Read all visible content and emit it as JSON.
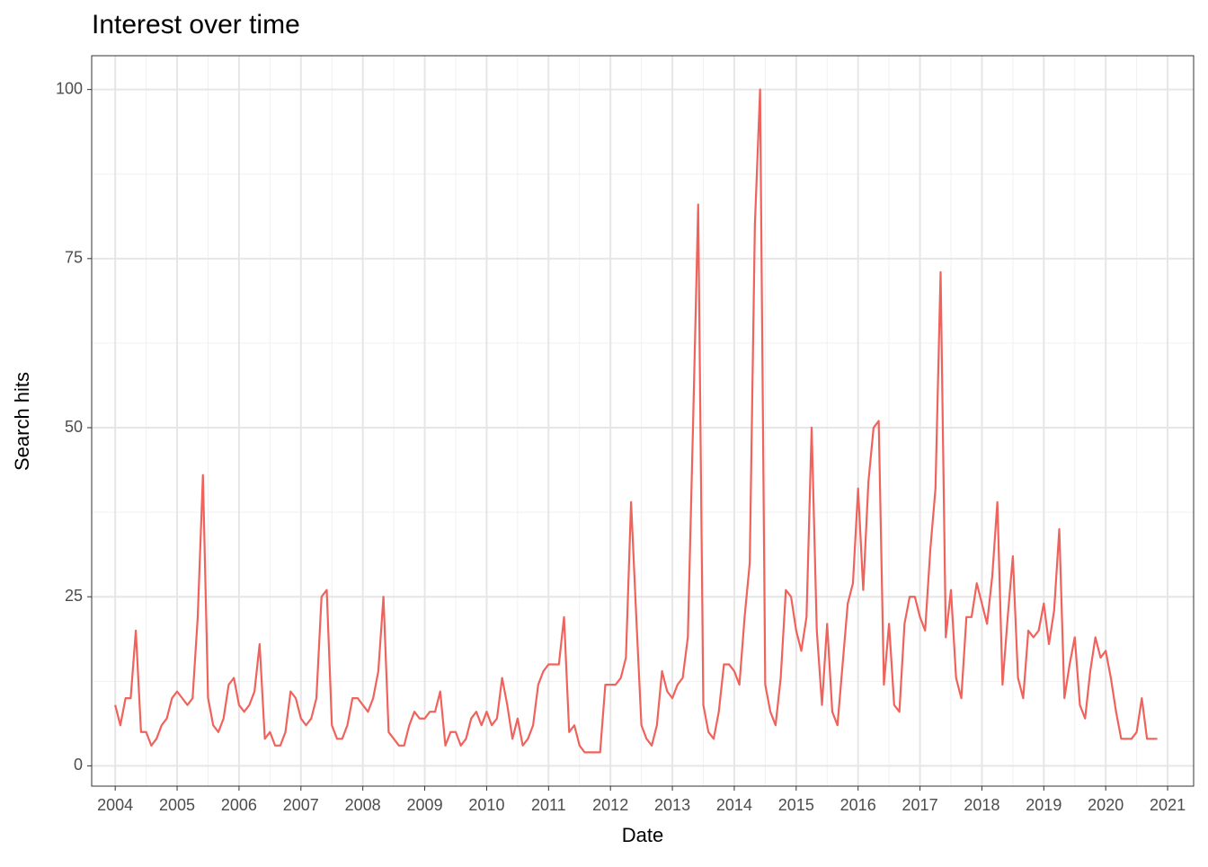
{
  "chart_data": {
    "type": "line",
    "title": "Interest over time",
    "x_label": "Date",
    "y_label": "Search hits",
    "x": [
      2004,
      2004.083,
      2004.167,
      2004.25,
      2004.333,
      2004.417,
      2004.5,
      2004.583,
      2004.667,
      2004.75,
      2004.833,
      2004.917,
      2005,
      2005.083,
      2005.167,
      2005.25,
      2005.333,
      2005.417,
      2005.5,
      2005.583,
      2005.667,
      2005.75,
      2005.833,
      2005.917,
      2006,
      2006.083,
      2006.167,
      2006.25,
      2006.333,
      2006.417,
      2006.5,
      2006.583,
      2006.667,
      2006.75,
      2006.833,
      2006.917,
      2007,
      2007.083,
      2007.167,
      2007.25,
      2007.333,
      2007.417,
      2007.5,
      2007.583,
      2007.667,
      2007.75,
      2007.833,
      2007.917,
      2008,
      2008.083,
      2008.167,
      2008.25,
      2008.333,
      2008.417,
      2008.5,
      2008.583,
      2008.667,
      2008.75,
      2008.833,
      2008.917,
      2009,
      2009.083,
      2009.167,
      2009.25,
      2009.333,
      2009.417,
      2009.5,
      2009.583,
      2009.667,
      2009.75,
      2009.833,
      2009.917,
      2010,
      2010.083,
      2010.167,
      2010.25,
      2010.333,
      2010.417,
      2010.5,
      2010.583,
      2010.667,
      2010.75,
      2010.833,
      2010.917,
      2011,
      2011.083,
      2011.167,
      2011.25,
      2011.333,
      2011.417,
      2011.5,
      2011.583,
      2011.667,
      2011.75,
      2011.833,
      2011.917,
      2012,
      2012.083,
      2012.167,
      2012.25,
      2012.333,
      2012.417,
      2012.5,
      2012.583,
      2012.667,
      2012.75,
      2012.833,
      2012.917,
      2013,
      2013.083,
      2013.167,
      2013.25,
      2013.333,
      2013.417,
      2013.5,
      2013.583,
      2013.667,
      2013.75,
      2013.833,
      2013.917,
      2014,
      2014.083,
      2014.167,
      2014.25,
      2014.333,
      2014.417,
      2014.5,
      2014.583,
      2014.667,
      2014.75,
      2014.833,
      2014.917,
      2015,
      2015.083,
      2015.167,
      2015.25,
      2015.333,
      2015.417,
      2015.5,
      2015.583,
      2015.667,
      2015.75,
      2015.833,
      2015.917,
      2016,
      2016.083,
      2016.167,
      2016.25,
      2016.333,
      2016.417,
      2016.5,
      2016.583,
      2016.667,
      2016.75,
      2016.833,
      2016.917,
      2017,
      2017.083,
      2017.167,
      2017.25,
      2017.333,
      2017.417,
      2017.5,
      2017.583,
      2017.667,
      2017.75,
      2017.833,
      2017.917,
      2018,
      2018.083,
      2018.167,
      2018.25,
      2018.333,
      2018.417,
      2018.5,
      2018.583,
      2018.667,
      2018.75,
      2018.833,
      2018.917,
      2019,
      2019.083,
      2019.167,
      2019.25,
      2019.333,
      2019.417,
      2019.5,
      2019.583,
      2019.667,
      2019.75,
      2019.833,
      2019.917,
      2020,
      2020.083,
      2020.167,
      2020.25,
      2020.333,
      2020.417,
      2020.5,
      2020.583,
      2020.667,
      2020.75,
      2020.833
    ],
    "series": [
      {
        "color": "#f0625c",
        "values": [
          9,
          6,
          10,
          10,
          20,
          5,
          5,
          3,
          4,
          6,
          7,
          10,
          11,
          10,
          9,
          10,
          22,
          43,
          10,
          6,
          5,
          7,
          12,
          13,
          9,
          8,
          9,
          11,
          18,
          4,
          5,
          3,
          3,
          5,
          11,
          10,
          7,
          6,
          7,
          10,
          25,
          26,
          6,
          4,
          4,
          6,
          10,
          10,
          9,
          8,
          10,
          14,
          25,
          5,
          4,
          3,
          3,
          6,
          8,
          7,
          7,
          8,
          8,
          11,
          3,
          5,
          5,
          3,
          4,
          7,
          8,
          6,
          8,
          6,
          7,
          13,
          9,
          4,
          7,
          3,
          4,
          6,
          12,
          14,
          15,
          15,
          15,
          22,
          5,
          6,
          3,
          2,
          2,
          2,
          2,
          12,
          12,
          12,
          13,
          16,
          39,
          22,
          6,
          4,
          3,
          6,
          14,
          11,
          10,
          12,
          13,
          19,
          50,
          83,
          9,
          5,
          4,
          8,
          15,
          15,
          14,
          12,
          22,
          30,
          80,
          100,
          12,
          8,
          6,
          13,
          26,
          25,
          20,
          17,
          22,
          50,
          20,
          9,
          21,
          8,
          6,
          15,
          24,
          27,
          41,
          26,
          42,
          50,
          51,
          12,
          21,
          9,
          8,
          21,
          25,
          25,
          22,
          20,
          32,
          41,
          73,
          19,
          26,
          13,
          10,
          22,
          22,
          27,
          24,
          21,
          28,
          39,
          12,
          22,
          31,
          13,
          10,
          20,
          19,
          20,
          24,
          18,
          23,
          35,
          10,
          15,
          19,
          9,
          7,
          14,
          19,
          16,
          17,
          13,
          8,
          4,
          4,
          4,
          5,
          10,
          4,
          4,
          4
        ]
      }
    ],
    "xlim": [
      2003.62,
      2021.42
    ],
    "xticks": [
      2004,
      2005,
      2006,
      2007,
      2008,
      2009,
      2010,
      2011,
      2012,
      2013,
      2014,
      2015,
      2016,
      2017,
      2018,
      2019,
      2020,
      2021
    ],
    "ylim": [
      -3,
      105
    ],
    "yticks": [
      0,
      25,
      50,
      75,
      100
    ],
    "grid": true
  }
}
